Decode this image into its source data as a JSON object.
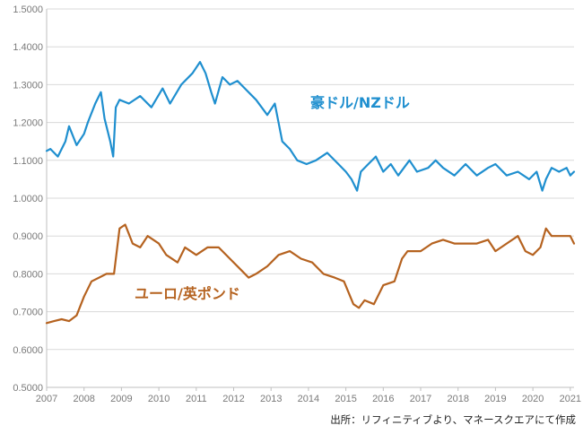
{
  "chart_data": {
    "type": "line",
    "ylim": [
      0.5,
      1.5
    ],
    "yticks": [
      "0.5000",
      "0.6000",
      "0.7000",
      "0.8000",
      "0.9000",
      "1.0000",
      "1.1000",
      "1.2000",
      "1.3000",
      "1.4000",
      "1.5000"
    ],
    "xlim": [
      2007.0,
      2021.1
    ],
    "xticks": [
      "2007",
      "2008",
      "2009",
      "2010",
      "2011",
      "2012",
      "2013",
      "2014",
      "2015",
      "2016",
      "2017",
      "2018",
      "2019",
      "2020",
      "2021"
    ],
    "grid": true,
    "series": [
      {
        "name": "豪ドル/NZドル",
        "color": "#1f8fcf",
        "x": [
          2007.0,
          2007.1,
          2007.3,
          2007.5,
          2007.6,
          2007.8,
          2008.0,
          2008.1,
          2008.3,
          2008.45,
          2008.55,
          2008.7,
          2008.78,
          2008.85,
          2008.95,
          2009.2,
          2009.5,
          2009.8,
          2010.1,
          2010.3,
          2010.6,
          2010.9,
          2011.1,
          2011.25,
          2011.4,
          2011.5,
          2011.7,
          2011.9,
          2012.1,
          2012.3,
          2012.6,
          2012.9,
          2013.1,
          2013.3,
          2013.5,
          2013.7,
          2013.95,
          2014.2,
          2014.5,
          2014.8,
          2015.0,
          2015.15,
          2015.3,
          2015.4,
          2015.6,
          2015.8,
          2016.0,
          2016.2,
          2016.4,
          2016.7,
          2016.9,
          2017.2,
          2017.4,
          2017.6,
          2017.9,
          2018.2,
          2018.5,
          2018.8,
          2019.0,
          2019.3,
          2019.6,
          2019.9,
          2020.1,
          2020.25,
          2020.35,
          2020.5,
          2020.7,
          2020.9,
          2021.0,
          2021.1
        ],
        "values": [
          1.125,
          1.13,
          1.11,
          1.15,
          1.19,
          1.14,
          1.17,
          1.2,
          1.25,
          1.28,
          1.21,
          1.15,
          1.11,
          1.24,
          1.26,
          1.25,
          1.27,
          1.24,
          1.29,
          1.25,
          1.3,
          1.33,
          1.36,
          1.33,
          1.28,
          1.25,
          1.32,
          1.3,
          1.31,
          1.29,
          1.26,
          1.22,
          1.25,
          1.15,
          1.13,
          1.1,
          1.09,
          1.1,
          1.12,
          1.09,
          1.07,
          1.05,
          1.02,
          1.07,
          1.09,
          1.11,
          1.07,
          1.09,
          1.06,
          1.1,
          1.07,
          1.08,
          1.1,
          1.08,
          1.06,
          1.09,
          1.06,
          1.08,
          1.09,
          1.06,
          1.07,
          1.05,
          1.07,
          1.02,
          1.05,
          1.08,
          1.07,
          1.08,
          1.06,
          1.07
        ]
      },
      {
        "name": "ユーロ/英ポンド",
        "color": "#b5621f",
        "x": [
          2007.0,
          2007.2,
          2007.4,
          2007.6,
          2007.8,
          2008.0,
          2008.2,
          2008.4,
          2008.6,
          2008.8,
          2008.95,
          2009.1,
          2009.3,
          2009.5,
          2009.7,
          2010.0,
          2010.2,
          2010.5,
          2010.7,
          2011.0,
          2011.3,
          2011.6,
          2011.9,
          2012.2,
          2012.4,
          2012.6,
          2012.9,
          2013.2,
          2013.5,
          2013.8,
          2014.1,
          2014.4,
          2014.7,
          2014.95,
          2015.2,
          2015.35,
          2015.5,
          2015.75,
          2016.0,
          2016.3,
          2016.5,
          2016.65,
          2016.8,
          2017.0,
          2017.3,
          2017.6,
          2017.9,
          2018.2,
          2018.5,
          2018.8,
          2019.0,
          2019.3,
          2019.6,
          2019.8,
          2020.0,
          2020.2,
          2020.35,
          2020.5,
          2020.8,
          2021.0,
          2021.1
        ],
        "values": [
          0.67,
          0.675,
          0.68,
          0.675,
          0.69,
          0.74,
          0.78,
          0.79,
          0.8,
          0.8,
          0.92,
          0.93,
          0.88,
          0.87,
          0.9,
          0.88,
          0.85,
          0.83,
          0.87,
          0.85,
          0.87,
          0.87,
          0.84,
          0.81,
          0.79,
          0.8,
          0.82,
          0.85,
          0.86,
          0.84,
          0.83,
          0.8,
          0.79,
          0.78,
          0.72,
          0.71,
          0.73,
          0.72,
          0.77,
          0.78,
          0.84,
          0.86,
          0.86,
          0.86,
          0.88,
          0.89,
          0.88,
          0.88,
          0.88,
          0.89,
          0.86,
          0.88,
          0.9,
          0.86,
          0.85,
          0.87,
          0.92,
          0.9,
          0.9,
          0.9,
          0.88
        ]
      }
    ]
  },
  "source_note": "出所：リフィニティブより、マネースクエアにて作成"
}
